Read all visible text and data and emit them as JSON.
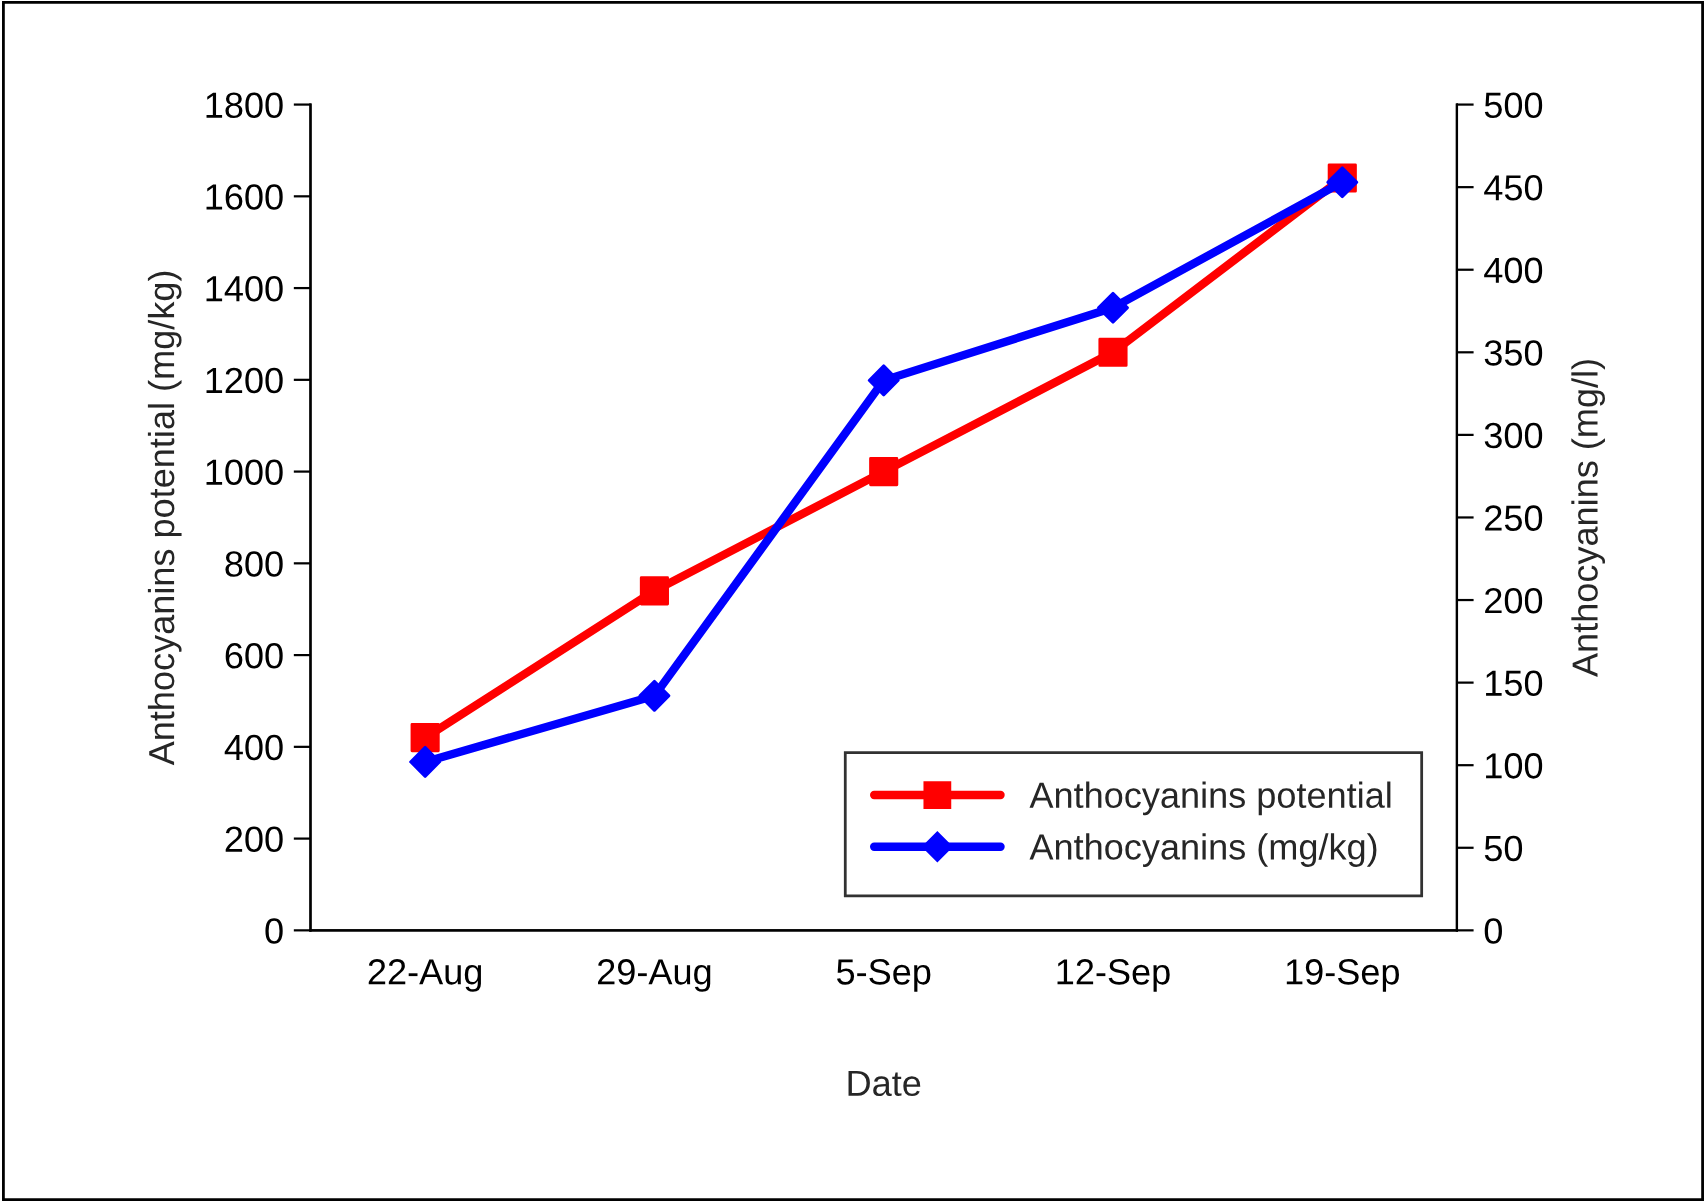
{
  "chart_data": {
    "type": "line",
    "xlabel": "Date",
    "ylabel": "Anthocyanins potential (mg/kg)",
    "y2label": "Anthocyanins (mg/l)",
    "categories": [
      "22-Aug",
      "29-Aug",
      "5-Sep",
      "12-Sep",
      "19-Sep"
    ],
    "series": [
      {
        "name": "Anthocyanins potential",
        "color": "#ff0000",
        "marker": "square",
        "values": [
          420,
          740,
          1000,
          1260,
          1640
        ]
      },
      {
        "name": "Anthocyanins (mg/kg)",
        "color": "#0000ff",
        "marker": "diamond",
        "axis": "y2",
        "values": [
          102,
          142,
          333,
          377,
          453
        ]
      }
    ],
    "ylim": [
      0,
      1800
    ],
    "yticks": [
      0,
      200,
      400,
      600,
      800,
      1000,
      1200,
      1400,
      1600,
      1800
    ],
    "y2lim": [
      0,
      500
    ],
    "y2ticks": [
      0,
      50,
      100,
      150,
      200,
      250,
      300,
      350,
      400,
      450,
      500
    ],
    "grid": false,
    "legend": "bottom right"
  }
}
